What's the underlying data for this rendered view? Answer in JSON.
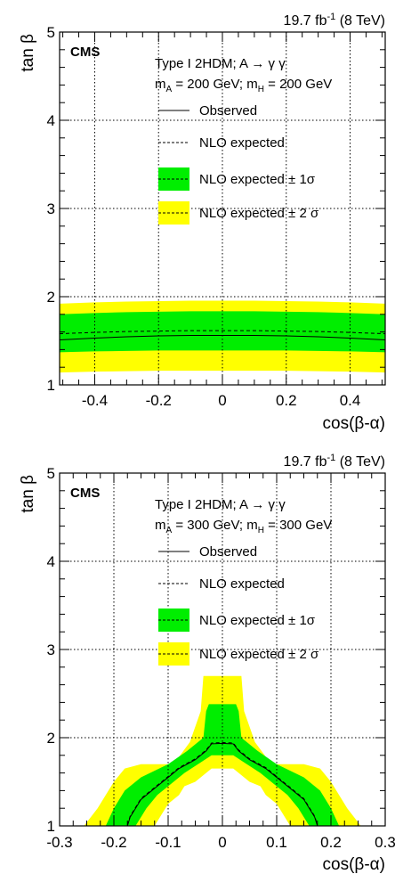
{
  "colors": {
    "band1": "#00ee00",
    "band2": "#ffff00",
    "line": "#000000",
    "grid": "#000000"
  },
  "chart_data": [
    {
      "type": "area",
      "lumi_main": "19.7 fb",
      "lumi_sup": "-1",
      "lumi_energy": " (8 TeV)",
      "experiment": "CMS",
      "model": "Type I 2HDM; A → γ γ",
      "masses_a": "m",
      "masses_a_sub": "A",
      "masses_a_val": " = 200 GeV; m",
      "masses_h_sub": "H",
      "masses_h_val": " = 200 GeV",
      "xlabel": "cos(β-α)",
      "ylabel": "tan β",
      "xlim": [
        -0.51,
        0.51
      ],
      "ylim": [
        1,
        5
      ],
      "xticks": [
        -0.4,
        -0.2,
        0,
        0.2,
        0.4
      ],
      "xtick_labels": [
        "-0.4",
        "-0.2",
        "0",
        "0.2",
        "0.4"
      ],
      "yticks": [
        1,
        2,
        3,
        4,
        5
      ],
      "ytick_labels": [
        "1",
        "2",
        "3",
        "4",
        "5"
      ],
      "grid": true,
      "legend": {
        "observed": "Observed",
        "expected": "NLO expected",
        "sigma1": "NLO expected ± 1σ",
        "sigma2": "NLO expected ± 2 σ"
      },
      "x": [
        -0.51,
        -0.4,
        -0.3,
        -0.2,
        -0.1,
        0,
        0.1,
        0.2,
        0.3,
        0.4,
        0.51
      ],
      "observed": [
        1.51,
        1.53,
        1.545,
        1.555,
        1.56,
        1.56,
        1.56,
        1.555,
        1.545,
        1.53,
        1.51
      ],
      "expected": [
        1.58,
        1.595,
        1.605,
        1.61,
        1.615,
        1.615,
        1.615,
        1.61,
        1.605,
        1.595,
        1.58
      ],
      "band1_lo": [
        1.37,
        1.38,
        1.385,
        1.39,
        1.39,
        1.39,
        1.39,
        1.39,
        1.385,
        1.38,
        1.37
      ],
      "band1_hi": [
        1.8,
        1.815,
        1.825,
        1.83,
        1.835,
        1.835,
        1.835,
        1.83,
        1.825,
        1.815,
        1.8
      ],
      "band2_lo": [
        1.14,
        1.15,
        1.155,
        1.16,
        1.16,
        1.16,
        1.16,
        1.16,
        1.155,
        1.15,
        1.14
      ],
      "band2_hi": [
        1.92,
        1.935,
        1.945,
        1.95,
        1.955,
        1.955,
        1.955,
        1.95,
        1.945,
        1.935,
        1.92
      ]
    },
    {
      "type": "area",
      "lumi_main": "19.7 fb",
      "lumi_sup": "-1",
      "lumi_energy": " (8 TeV)",
      "experiment": "CMS",
      "model": "Type I 2HDM; A → γ γ",
      "masses_a": "m",
      "masses_a_sub": "A",
      "masses_a_val": " = 300 GeV; m",
      "masses_h_sub": "H",
      "masses_h_val": " = 300 GeV",
      "xlabel": "cos(β-α)",
      "ylabel": "tan β",
      "xlim": [
        -0.3,
        0.3
      ],
      "ylim": [
        1,
        5
      ],
      "xticks": [
        -0.3,
        -0.2,
        -0.1,
        0,
        0.1,
        0.2,
        0.3
      ],
      "xtick_labels": [
        "-0.3",
        "-0.2",
        "-0.1",
        "0",
        "0.1",
        "0.2",
        "0.3"
      ],
      "yticks": [
        1,
        2,
        3,
        4,
        5
      ],
      "ytick_labels": [
        "1",
        "2",
        "3",
        "4",
        "5"
      ],
      "grid": true,
      "legend": {
        "observed": "Observed",
        "expected": "NLO expected",
        "sigma1": "NLO expected ± 1σ",
        "sigma2": "NLO expected ± 2 σ"
      },
      "band2_polygon": [
        [
          -0.255,
          1.0
        ],
        [
          -0.23,
          1.2
        ],
        [
          -0.2,
          1.5
        ],
        [
          -0.18,
          1.65
        ],
        [
          -0.15,
          1.7
        ],
        [
          -0.09,
          1.7
        ],
        [
          -0.06,
          1.95
        ],
        [
          -0.04,
          2.3
        ],
        [
          -0.035,
          2.7
        ],
        [
          0.035,
          2.7
        ],
        [
          0.04,
          2.3
        ],
        [
          0.06,
          1.95
        ],
        [
          0.09,
          1.7
        ],
        [
          0.15,
          1.7
        ],
        [
          0.18,
          1.65
        ],
        [
          0.2,
          1.5
        ],
        [
          0.23,
          1.2
        ],
        [
          0.255,
          1.0
        ]
      ],
      "band2_inner": [
        [
          -0.125,
          1.0
        ],
        [
          -0.1,
          1.25
        ],
        [
          -0.08,
          1.35
        ],
        [
          -0.07,
          1.45
        ],
        [
          -0.05,
          1.5
        ],
        [
          -0.02,
          1.65
        ],
        [
          0.02,
          1.65
        ],
        [
          0.05,
          1.5
        ],
        [
          0.07,
          1.45
        ],
        [
          0.08,
          1.35
        ],
        [
          0.1,
          1.25
        ],
        [
          0.125,
          1.0
        ]
      ],
      "band1_polygon": [
        [
          -0.215,
          1.0
        ],
        [
          -0.2,
          1.2
        ],
        [
          -0.18,
          1.4
        ],
        [
          -0.15,
          1.55
        ],
        [
          -0.1,
          1.7
        ],
        [
          -0.065,
          1.85
        ],
        [
          -0.035,
          2.0
        ],
        [
          -0.03,
          2.3
        ],
        [
          -0.025,
          2.38
        ],
        [
          0.025,
          2.38
        ],
        [
          0.03,
          2.3
        ],
        [
          0.035,
          2.0
        ],
        [
          0.065,
          1.85
        ],
        [
          0.1,
          1.7
        ],
        [
          0.15,
          1.55
        ],
        [
          0.18,
          1.4
        ],
        [
          0.2,
          1.2
        ],
        [
          0.215,
          1.0
        ]
      ],
      "band1_inner": [
        [
          -0.16,
          1.0
        ],
        [
          -0.14,
          1.2
        ],
        [
          -0.12,
          1.35
        ],
        [
          -0.1,
          1.45
        ],
        [
          -0.07,
          1.6
        ],
        [
          -0.04,
          1.72
        ],
        [
          -0.02,
          1.8
        ],
        [
          0.02,
          1.8
        ],
        [
          0.04,
          1.72
        ],
        [
          0.07,
          1.6
        ],
        [
          0.1,
          1.45
        ],
        [
          0.12,
          1.35
        ],
        [
          0.14,
          1.2
        ],
        [
          0.16,
          1.0
        ]
      ],
      "observed_x": [
        -0.175,
        -0.17,
        -0.16,
        -0.15,
        -0.13,
        -0.1,
        -0.08,
        -0.05,
        -0.03,
        -0.02,
        0,
        0.02,
        0.03,
        0.05,
        0.08,
        0.1,
        0.13,
        0.15,
        0.16,
        0.17,
        0.175
      ],
      "observed_y": [
        1.0,
        1.1,
        1.2,
        1.3,
        1.4,
        1.55,
        1.65,
        1.75,
        1.85,
        1.93,
        1.935,
        1.93,
        1.85,
        1.75,
        1.65,
        1.55,
        1.4,
        1.3,
        1.2,
        1.1,
        1.0
      ]
    }
  ]
}
